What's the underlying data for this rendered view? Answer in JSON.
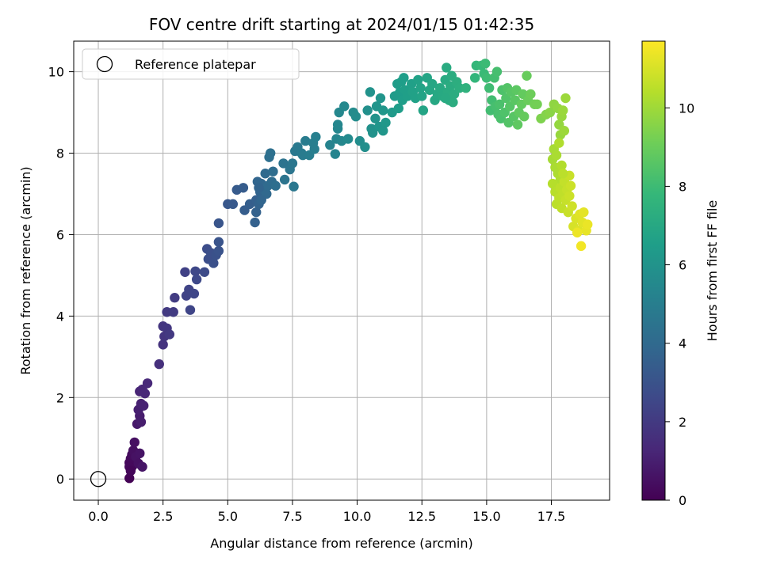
{
  "chart_data": {
    "type": "scatter",
    "title": "FOV centre drift starting at 2024/01/15 01:42:35",
    "xlabel": "Angular distance from reference (arcmin)",
    "ylabel": "Rotation from reference (arcmin)",
    "colorbar_label": "Hours from first FF file",
    "colormap": "viridis",
    "colormap_stops": [
      "#440154",
      "#482878",
      "#3e4989",
      "#31688e",
      "#26828e",
      "#1f9e89",
      "#35b779",
      "#6ece58",
      "#b5de2b",
      "#fde725"
    ],
    "xlim": [
      -0.95,
      19.75
    ],
    "ylim": [
      -0.52,
      10.75
    ],
    "xticks": [
      0.0,
      2.5,
      5.0,
      7.5,
      10.0,
      12.5,
      15.0,
      17.5
    ],
    "xtick_labels": [
      "0.0",
      "2.5",
      "5.0",
      "7.5",
      "10.0",
      "12.5",
      "15.0",
      "17.5"
    ],
    "yticks": [
      0,
      2,
      4,
      6,
      8,
      10
    ],
    "ytick_labels": [
      "0",
      "2",
      "4",
      "6",
      "8",
      "10"
    ],
    "clim": [
      0,
      11.7
    ],
    "cticks": [
      0,
      2,
      4,
      6,
      8,
      10
    ],
    "ctick_labels": [
      "0",
      "2",
      "4",
      "6",
      "8",
      "10"
    ],
    "grid": true,
    "legend": {
      "position": "upper-left",
      "entries": [
        {
          "label": "Reference platepar",
          "marker": "open-circle"
        }
      ]
    },
    "reference_point": {
      "x": 0.0,
      "y": 0.0
    },
    "series": [
      {
        "points": [
          [
            1.2,
            0.02,
            0.05
          ],
          [
            1.3,
            0.3,
            0.1
          ],
          [
            1.2,
            0.4,
            0.2
          ],
          [
            1.25,
            0.5,
            0.3
          ],
          [
            1.3,
            0.6,
            0.35
          ],
          [
            1.35,
            0.7,
            0.45
          ],
          [
            1.4,
            0.9,
            0.5
          ],
          [
            1.45,
            0.55,
            0.55
          ],
          [
            1.6,
            0.63,
            0.6
          ],
          [
            1.55,
            0.38,
            0.5
          ],
          [
            1.7,
            0.3,
            0.65
          ],
          [
            1.2,
            0.3,
            0.25
          ],
          [
            1.25,
            0.2,
            0.15
          ],
          [
            1.5,
            1.35,
            0.8
          ],
          [
            1.6,
            1.55,
            0.9
          ],
          [
            1.55,
            1.7,
            1.0
          ],
          [
            1.65,
            1.85,
            1.05
          ],
          [
            1.75,
            1.8,
            1.1
          ],
          [
            1.6,
            2.15,
            1.2
          ],
          [
            1.7,
            2.2,
            1.25
          ],
          [
            1.8,
            2.1,
            1.3
          ],
          [
            1.9,
            2.35,
            1.35
          ],
          [
            1.65,
            1.4,
            0.95
          ],
          [
            2.35,
            2.82,
            1.6
          ],
          [
            2.5,
            3.3,
            1.75
          ],
          [
            2.55,
            3.5,
            1.8
          ],
          [
            2.5,
            3.75,
            1.85
          ],
          [
            2.65,
            3.7,
            1.9
          ],
          [
            2.75,
            3.55,
            1.95
          ],
          [
            2.65,
            4.1,
            2.0
          ],
          [
            2.9,
            4.1,
            2.05
          ],
          [
            2.95,
            4.45,
            2.1
          ],
          [
            3.35,
            5.08,
            2.3
          ],
          [
            3.4,
            4.5,
            2.35
          ],
          [
            3.5,
            4.65,
            2.4
          ],
          [
            3.55,
            4.15,
            2.45
          ],
          [
            3.7,
            4.55,
            2.5
          ],
          [
            3.75,
            5.1,
            2.55
          ],
          [
            3.8,
            4.9,
            2.6
          ],
          [
            4.2,
            5.65,
            2.75
          ],
          [
            4.25,
            5.4,
            2.8
          ],
          [
            4.35,
            5.55,
            2.85
          ],
          [
            4.45,
            5.3,
            2.9
          ],
          [
            4.55,
            5.5,
            2.95
          ],
          [
            4.65,
            5.6,
            3.0
          ],
          [
            4.65,
            5.82,
            3.05
          ],
          [
            4.1,
            5.08,
            2.7
          ],
          [
            4.65,
            6.28,
            3.1
          ],
          [
            5.0,
            6.75,
            3.2
          ],
          [
            5.2,
            6.75,
            3.25
          ],
          [
            5.35,
            7.1,
            3.35
          ],
          [
            5.6,
            7.15,
            3.4
          ],
          [
            5.65,
            6.6,
            3.45
          ],
          [
            5.85,
            6.75,
            3.5
          ],
          [
            6.1,
            6.85,
            3.55
          ],
          [
            6.05,
            6.3,
            3.6
          ],
          [
            6.1,
            6.55,
            3.65
          ],
          [
            6.2,
            6.75,
            3.7
          ],
          [
            6.25,
            7.05,
            3.75
          ],
          [
            6.15,
            7.3,
            3.8
          ],
          [
            6.3,
            7.25,
            3.85
          ],
          [
            6.4,
            7.1,
            3.9
          ],
          [
            6.5,
            7.0,
            3.95
          ],
          [
            6.45,
            7.5,
            4.0
          ],
          [
            6.55,
            7.2,
            4.05
          ],
          [
            6.7,
            7.3,
            4.1
          ],
          [
            6.75,
            7.55,
            4.15
          ],
          [
            6.85,
            7.2,
            4.2
          ],
          [
            6.6,
            7.9,
            4.25
          ],
          [
            6.65,
            8.0,
            4.3
          ],
          [
            6.3,
            6.85,
            3.8
          ],
          [
            6.2,
            7.15,
            3.75
          ],
          [
            7.15,
            7.75,
            4.45
          ],
          [
            7.2,
            7.35,
            4.5
          ],
          [
            7.4,
            7.6,
            4.55
          ],
          [
            7.5,
            7.75,
            4.6
          ],
          [
            7.55,
            7.18,
            4.65
          ],
          [
            7.6,
            8.05,
            4.7
          ],
          [
            7.7,
            8.15,
            4.75
          ],
          [
            7.85,
            8.0,
            4.8
          ],
          [
            7.9,
            7.95,
            4.85
          ],
          [
            8.0,
            8.3,
            4.9
          ],
          [
            8.15,
            7.95,
            4.95
          ],
          [
            8.3,
            8.25,
            5.0
          ],
          [
            8.4,
            8.4,
            5.05
          ],
          [
            8.35,
            8.1,
            5.0
          ],
          [
            8.95,
            8.2,
            5.25
          ],
          [
            9.15,
            7.98,
            5.3
          ],
          [
            9.2,
            8.35,
            5.35
          ],
          [
            9.25,
            8.6,
            5.4
          ],
          [
            9.3,
            9.0,
            5.45
          ],
          [
            9.25,
            8.7,
            5.4
          ],
          [
            9.4,
            8.3,
            5.45
          ],
          [
            9.5,
            9.15,
            5.5
          ],
          [
            9.65,
            8.35,
            5.55
          ],
          [
            9.85,
            9.0,
            5.6
          ],
          [
            9.95,
            8.9,
            5.65
          ],
          [
            10.1,
            8.3,
            5.7
          ],
          [
            10.3,
            8.15,
            5.8
          ],
          [
            10.4,
            9.05,
            5.85
          ],
          [
            10.55,
            8.6,
            5.9
          ],
          [
            10.5,
            9.5,
            5.95
          ],
          [
            10.6,
            8.5,
            5.95
          ],
          [
            10.7,
            8.85,
            6.0
          ],
          [
            10.75,
            9.15,
            6.05
          ],
          [
            10.85,
            8.65,
            6.1
          ],
          [
            10.9,
            9.35,
            6.1
          ],
          [
            11.0,
            9.05,
            6.15
          ],
          [
            11.1,
            8.75,
            6.2
          ],
          [
            11.0,
            8.55,
            6.15
          ],
          [
            11.35,
            9.0,
            6.3
          ],
          [
            11.45,
            9.4,
            6.35
          ],
          [
            11.55,
            9.7,
            6.4
          ],
          [
            11.6,
            9.1,
            6.45
          ],
          [
            11.65,
            9.5,
            6.45
          ],
          [
            11.75,
            9.3,
            6.5
          ],
          [
            11.8,
            9.85,
            6.5
          ],
          [
            11.7,
            9.75,
            6.48
          ],
          [
            11.85,
            9.55,
            6.55
          ],
          [
            11.95,
            9.4,
            6.55
          ],
          [
            12.1,
            9.7,
            6.6
          ],
          [
            12.15,
            9.5,
            6.65
          ],
          [
            12.25,
            9.35,
            6.65
          ],
          [
            12.35,
            9.8,
            6.7
          ],
          [
            12.45,
            9.6,
            6.75
          ],
          [
            12.5,
            9.4,
            6.75
          ],
          [
            12.55,
            9.05,
            6.8
          ],
          [
            12.7,
            9.85,
            6.85
          ],
          [
            12.8,
            9.55,
            6.9
          ],
          [
            12.9,
            9.7,
            6.9
          ],
          [
            13.0,
            9.3,
            6.95
          ],
          [
            13.1,
            9.45,
            7.0
          ],
          [
            13.2,
            9.6,
            7.05
          ],
          [
            13.3,
            9.4,
            7.05
          ],
          [
            13.4,
            9.8,
            7.1
          ],
          [
            13.45,
            10.1,
            7.15
          ],
          [
            13.5,
            9.5,
            7.15
          ],
          [
            13.55,
            9.3,
            7.2
          ],
          [
            13.6,
            9.65,
            7.2
          ],
          [
            13.7,
            9.25,
            7.25
          ],
          [
            13.75,
            9.45,
            7.25
          ],
          [
            13.85,
            9.75,
            7.3
          ],
          [
            13.95,
            9.6,
            7.35
          ],
          [
            13.4,
            9.35,
            7.1
          ],
          [
            13.65,
            9.9,
            7.22
          ],
          [
            14.2,
            9.6,
            7.5
          ],
          [
            14.55,
            9.85,
            7.7
          ],
          [
            14.6,
            10.15,
            7.75
          ],
          [
            14.8,
            10.15,
            7.85
          ],
          [
            14.9,
            9.95,
            7.9
          ],
          [
            14.95,
            10.2,
            7.95
          ],
          [
            15.0,
            9.85,
            8.0
          ],
          [
            15.1,
            9.6,
            8.05
          ],
          [
            15.2,
            9.3,
            8.1
          ],
          [
            15.15,
            9.05,
            8.1
          ],
          [
            15.3,
            9.85,
            8.15
          ],
          [
            15.35,
            9.15,
            8.2
          ],
          [
            15.4,
            10.0,
            8.2
          ],
          [
            15.45,
            8.95,
            8.25
          ],
          [
            15.5,
            9.2,
            8.3
          ],
          [
            15.55,
            8.85,
            8.3
          ],
          [
            15.6,
            9.55,
            8.35
          ],
          [
            15.7,
            9.0,
            8.4
          ],
          [
            15.75,
            9.35,
            8.45
          ],
          [
            15.8,
            9.6,
            8.5
          ],
          [
            15.85,
            8.75,
            8.5
          ],
          [
            15.9,
            9.15,
            8.55
          ],
          [
            15.95,
            9.5,
            8.6
          ],
          [
            16.05,
            8.9,
            8.6
          ],
          [
            16.1,
            9.3,
            8.65
          ],
          [
            16.15,
            9.55,
            8.7
          ],
          [
            16.2,
            8.7,
            8.75
          ],
          [
            16.25,
            9.0,
            8.8
          ],
          [
            16.35,
            9.2,
            8.85
          ],
          [
            16.4,
            9.45,
            8.85
          ],
          [
            16.45,
            8.9,
            8.9
          ],
          [
            16.55,
            9.9,
            8.95
          ],
          [
            16.6,
            9.3,
            9.0
          ],
          [
            16.7,
            9.45,
            9.05
          ],
          [
            16.85,
            9.2,
            9.15
          ],
          [
            16.95,
            9.2,
            9.2
          ],
          [
            17.1,
            8.85,
            9.4
          ],
          [
            17.3,
            8.95,
            9.5
          ],
          [
            17.45,
            9.0,
            9.6
          ],
          [
            17.6,
            9.2,
            9.7
          ],
          [
            17.75,
            9.1,
            9.75
          ],
          [
            17.8,
            8.7,
            9.8
          ],
          [
            17.85,
            8.45,
            9.85
          ],
          [
            17.9,
            8.9,
            9.85
          ],
          [
            17.95,
            9.05,
            9.9
          ],
          [
            18.05,
            9.35,
            9.95
          ],
          [
            18.0,
            8.55,
            9.95
          ],
          [
            17.55,
            7.85,
            10.1
          ],
          [
            17.6,
            8.1,
            10.15
          ],
          [
            17.65,
            7.65,
            10.2
          ],
          [
            17.7,
            7.95,
            10.2
          ],
          [
            17.75,
            7.5,
            10.25
          ],
          [
            17.8,
            8.25,
            10.3
          ],
          [
            17.85,
            7.35,
            10.3
          ],
          [
            17.9,
            7.7,
            10.35
          ],
          [
            17.55,
            7.25,
            10.4
          ],
          [
            17.65,
            7.05,
            10.45
          ],
          [
            17.7,
            6.75,
            10.5
          ],
          [
            17.8,
            6.9,
            10.55
          ],
          [
            17.85,
            7.15,
            10.55
          ],
          [
            17.9,
            6.65,
            10.6
          ],
          [
            17.95,
            7.0,
            10.6
          ],
          [
            18.0,
            7.3,
            10.65
          ],
          [
            18.05,
            6.85,
            10.7
          ],
          [
            18.1,
            7.1,
            10.7
          ],
          [
            18.15,
            6.55,
            10.75
          ],
          [
            18.2,
            6.95,
            10.8
          ],
          [
            18.25,
            7.2,
            10.8
          ],
          [
            18.3,
            6.7,
            10.85
          ],
          [
            18.2,
            7.45,
            10.75
          ],
          [
            17.95,
            7.5,
            10.5
          ],
          [
            18.35,
            6.2,
            11.0
          ],
          [
            18.45,
            6.4,
            11.05
          ],
          [
            18.55,
            6.1,
            11.1
          ],
          [
            18.6,
            6.5,
            11.15
          ],
          [
            18.7,
            6.3,
            11.2
          ],
          [
            18.75,
            6.55,
            11.25
          ],
          [
            18.85,
            6.1,
            11.3
          ],
          [
            18.9,
            6.25,
            11.35
          ],
          [
            18.65,
            5.72,
            11.5
          ],
          [
            18.5,
            6.05,
            11.4
          ]
        ]
      }
    ]
  }
}
